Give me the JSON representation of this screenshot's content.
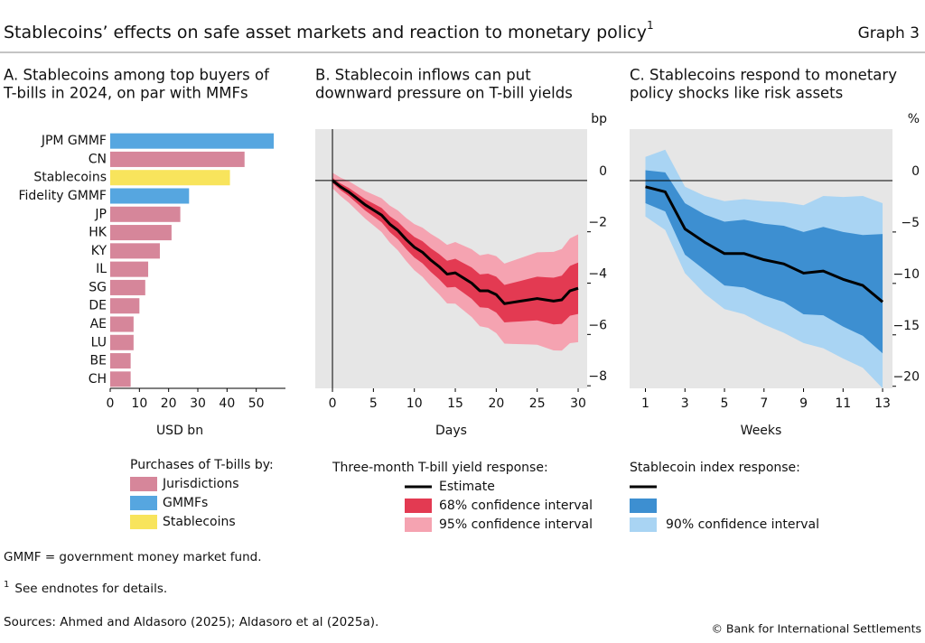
{
  "header": {
    "title": "Stablecoins’ effects on safe asset markets and reaction to monetary policy",
    "title_note": "1",
    "label": "Graph 3"
  },
  "chart_data": [
    {
      "type": "hbar",
      "title_lines": [
        "A. Stablecoins among top buyers of",
        "T-bills in 2024, on par with MMFs"
      ],
      "categories": [
        "JPM GMMF",
        "CN",
        "Stablecoins",
        "Fidelity GMMF",
        "JP",
        "HK",
        "KY",
        "IL",
        "SG",
        "DE",
        "AE",
        "LU",
        "BE",
        "CH"
      ],
      "values": [
        56,
        46,
        41,
        27,
        24,
        21,
        17,
        13,
        12,
        10,
        8,
        8,
        7,
        7
      ],
      "colors": [
        "#56a6e0",
        "#d6869a",
        "#f8e45c",
        "#56a6e0",
        "#d6869a",
        "#d6869a",
        "#d6869a",
        "#d6869a",
        "#d6869a",
        "#d6869a",
        "#d6869a",
        "#d6869a",
        "#d6869a",
        "#d6869a"
      ],
      "xlim": [
        0,
        60
      ],
      "xticks": [
        0,
        10,
        20,
        30,
        40,
        50
      ],
      "xlabel": "USD bn",
      "legend": {
        "title": "Purchases of T-bills by:",
        "items": [
          {
            "name": "Jurisdictions",
            "color": "#d6869a"
          },
          {
            "name": "GMMFs",
            "color": "#56a6e0"
          },
          {
            "name": "Stablecoins",
            "color": "#f8e45c"
          }
        ]
      }
    },
    {
      "type": "line",
      "title_lines": [
        "B. Stablecoin inflows can put",
        "downward pressure on T-bill yields"
      ],
      "x": [
        0,
        1,
        2,
        3,
        4,
        5,
        6,
        7,
        8,
        9,
        10,
        11,
        12,
        13,
        14,
        15,
        16,
        17,
        18,
        19,
        20,
        21,
        22,
        23,
        24,
        25,
        26,
        27,
        28,
        29,
        30
      ],
      "series": [
        {
          "name": "Estimate",
          "color": "#000000",
          "values": [
            0,
            -0.25,
            -0.45,
            -0.7,
            -0.95,
            -1.15,
            -1.35,
            -1.7,
            -1.95,
            -2.3,
            -2.6,
            -2.8,
            -3.1,
            -3.35,
            -3.65,
            -3.6,
            -3.8,
            -4.0,
            -4.3,
            -4.3,
            -4.45,
            -4.8,
            -4.75,
            -4.7,
            -4.65,
            -4.6,
            -4.65,
            -4.7,
            -4.65,
            -4.3,
            -4.2
          ]
        },
        {
          "name": "68% confidence interval",
          "color": "#e33a52",
          "upper": [
            0.1,
            -0.12,
            -0.29,
            -0.51,
            -0.73,
            -0.9,
            -1.07,
            -1.39,
            -1.61,
            -1.93,
            -2.2,
            -2.37,
            -2.64,
            -2.86,
            -3.13,
            -3.05,
            -3.22,
            -3.39,
            -3.66,
            -3.63,
            -3.75,
            -4.07,
            -3.99,
            -3.91,
            -3.83,
            -3.75,
            -3.77,
            -3.79,
            -3.71,
            -3.33,
            -3.2
          ],
          "lower": [
            -0.1,
            -0.38,
            -0.61,
            -0.89,
            -1.17,
            -1.4,
            -1.63,
            -2.01,
            -2.29,
            -2.67,
            -3.0,
            -3.23,
            -3.56,
            -3.84,
            -4.17,
            -4.15,
            -4.38,
            -4.61,
            -4.94,
            -4.97,
            -5.15,
            -5.53,
            -5.51,
            -5.49,
            -5.47,
            -5.45,
            -5.53,
            -5.61,
            -5.59,
            -5.27,
            -5.2
          ]
        },
        {
          "name": "95% confidence interval",
          "color": "#f5a3b1",
          "upper": [
            0.3,
            0.11,
            -0.03,
            -0.22,
            -0.41,
            -0.55,
            -0.69,
            -0.98,
            -1.17,
            -1.46,
            -1.7,
            -1.84,
            -2.08,
            -2.27,
            -2.51,
            -2.4,
            -2.54,
            -2.68,
            -2.92,
            -2.86,
            -2.95,
            -3.24,
            -3.13,
            -3.02,
            -2.91,
            -2.8,
            -2.79,
            -2.78,
            -2.67,
            -2.26,
            -2.1
          ],
          "lower": [
            -0.3,
            -0.61,
            -0.87,
            -1.18,
            -1.49,
            -1.75,
            -2.01,
            -2.42,
            -2.73,
            -3.14,
            -3.5,
            -3.76,
            -4.12,
            -4.43,
            -4.79,
            -4.8,
            -5.06,
            -5.32,
            -5.68,
            -5.74,
            -5.95,
            -6.36,
            -6.37,
            -6.38,
            -6.39,
            -6.4,
            -6.51,
            -6.62,
            -6.63,
            -6.34,
            -6.3
          ]
        }
      ],
      "xlim": [
        -2.1,
        31.1
      ],
      "xticks": [
        0,
        5,
        10,
        15,
        20,
        25,
        30
      ],
      "xlabel": "Days",
      "ylim": [
        -8.1,
        2.0
      ],
      "yticks": [
        0,
        {
          "value": -2,
          "label": "−2"
        },
        {
          "value": -4,
          "label": "−4"
        },
        {
          "value": -6,
          "label": "−6"
        },
        {
          "value": -8,
          "label": "−8"
        }
      ],
      "yunit": "bp",
      "background": "#e6e6e6",
      "legend": {
        "title": "Three-month T-bill yield response:"
      }
    },
    {
      "type": "line",
      "title_lines": [
        "C. Stablecoins respond to monetary",
        "policy shocks like risk assets"
      ],
      "x": [
        1,
        2,
        3,
        4,
        5,
        6,
        7,
        8,
        9,
        10,
        11,
        12,
        13
      ],
      "series": [
        {
          "name": null,
          "color": "#000000",
          "values": [
            -0.6,
            -1.1,
            -4.7,
            -6.0,
            -7.1,
            -7.1,
            -7.7,
            -8.1,
            -9.0,
            -8.8,
            -9.6,
            -10.2,
            -11.8
          ]
        },
        {
          "name": null,
          "color": "#3d8fd1",
          "upper": [
            1.0,
            0.8,
            -2.2,
            -3.3,
            -4.0,
            -3.8,
            -4.2,
            -4.4,
            -5.0,
            -4.5,
            -5.0,
            -5.3,
            -5.2
          ],
          "lower": [
            -2.2,
            -3.0,
            -7.2,
            -8.7,
            -10.2,
            -10.4,
            -11.2,
            -11.8,
            -13.0,
            -13.1,
            -14.2,
            -15.1,
            -16.8
          ]
        },
        {
          "name": "90% confidence interval",
          "color": "#a9d4f3",
          "upper": [
            2.3,
            3.0,
            -0.6,
            -1.5,
            -2.0,
            -1.8,
            -2.0,
            -2.1,
            -2.4,
            -1.5,
            -1.6,
            -1.5,
            -2.2
          ],
          "lower": [
            -3.5,
            -4.8,
            -9.0,
            -11.0,
            -12.5,
            -13.0,
            -14.0,
            -14.8,
            -15.8,
            -16.3,
            -17.3,
            -18.2,
            -20.2
          ]
        }
      ],
      "xlim": [
        0.2,
        13.5
      ],
      "xticks": [
        1,
        3,
        5,
        7,
        9,
        11,
        13
      ],
      "xlabel": "Weeks",
      "ylim": [
        -20.2,
        5.0
      ],
      "yticks": [
        0,
        {
          "value": -5,
          "label": "−5"
        },
        {
          "value": -10,
          "label": "−10"
        },
        {
          "value": -15,
          "label": "−15"
        },
        {
          "value": -20,
          "label": "−20"
        }
      ],
      "yunit": "%",
      "background": "#e6e6e6",
      "legend": {
        "title": "Stablecoin index response:"
      }
    }
  ],
  "footnotes": {
    "abbrev": "GMMF = government money market fund.",
    "note_mark": "1",
    "note": "See endnotes for details.",
    "sources": "Sources: Ahmed and Aldasoro (2025); Aldasoro et al (2025a).",
    "copyright": "© Bank for International Settlements"
  }
}
